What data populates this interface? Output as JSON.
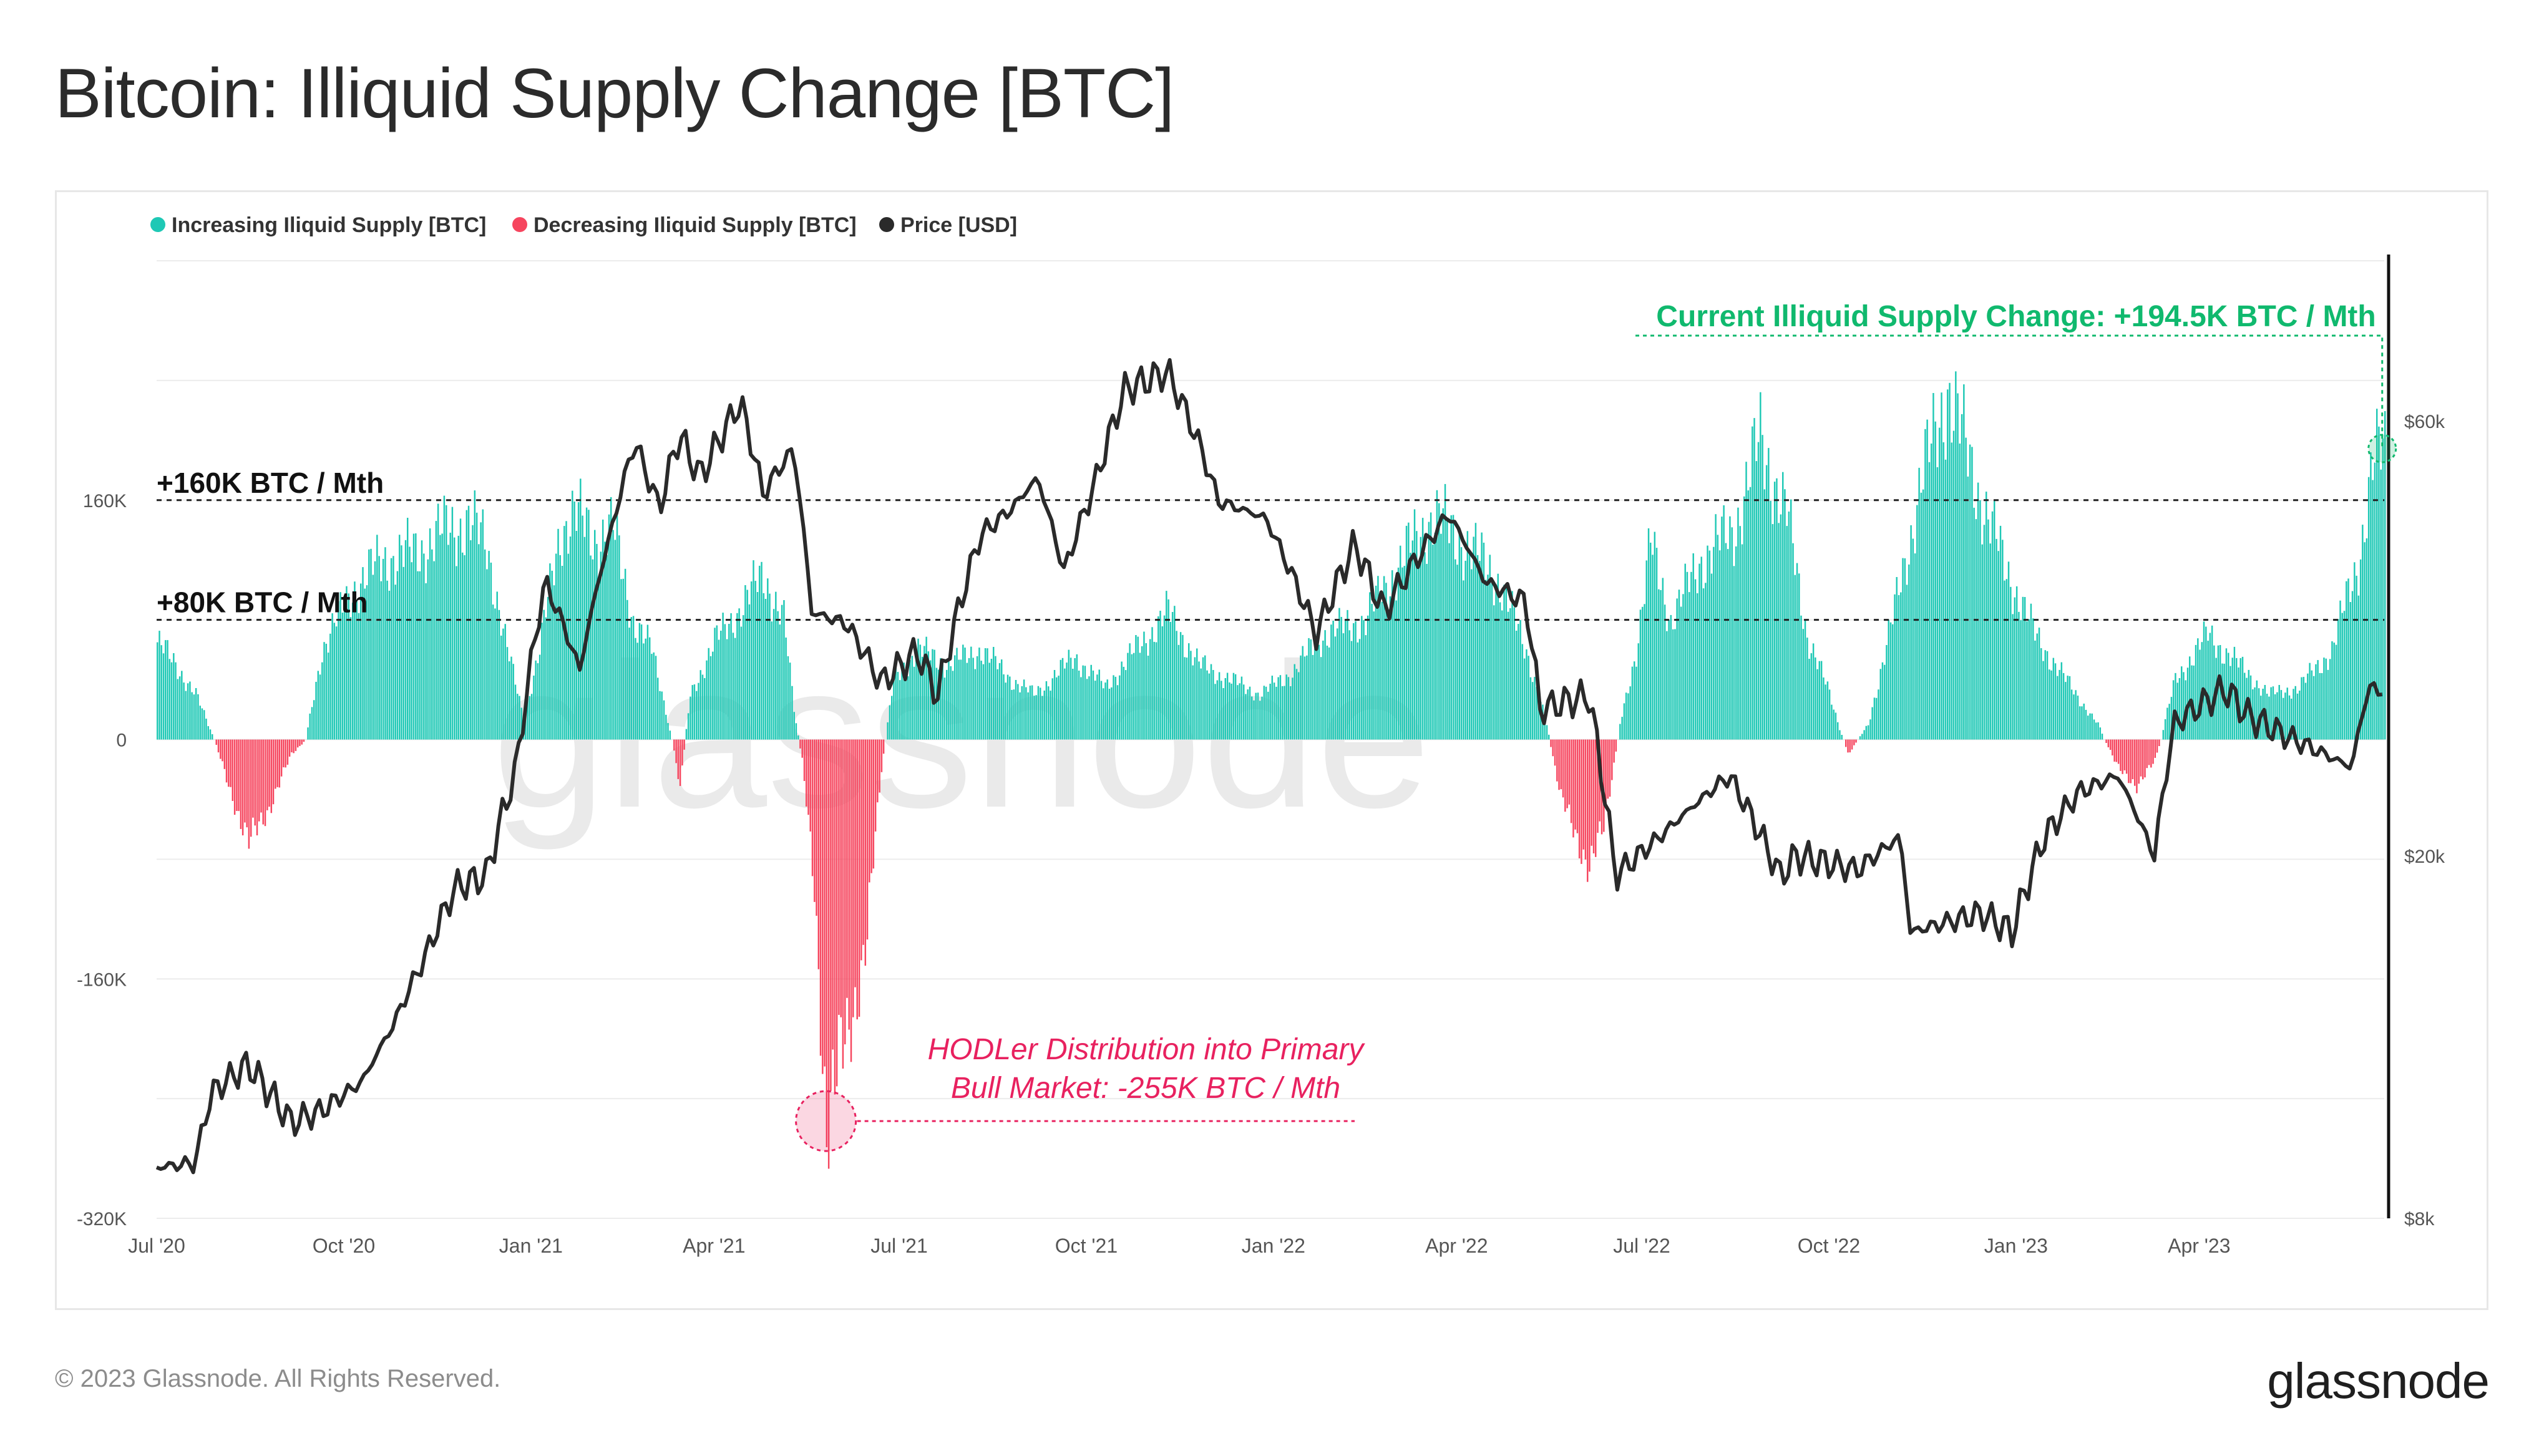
{
  "page": {
    "title": "Bitcoin: Illiquid Supply Change [BTC]",
    "copyright": "© 2023 Glassnode. All Rights Reserved.",
    "brand": "glassnode",
    "watermark": "glassnode"
  },
  "colors": {
    "increasing": "#1ec8b5",
    "decreasing": "#f6455e",
    "price": "#2a2a2a",
    "annotation_green": "#10b96e",
    "annotation_pink": "#e8215f",
    "grid": "#ececec"
  },
  "chart_data": {
    "type": "bar",
    "title": "Bitcoin: Illiquid Supply Change [BTC]",
    "legend": [
      {
        "label": "Increasing Iliquid Supply [BTC]",
        "color": "#1ec8b5"
      },
      {
        "label": "Decreasing Iliquid Supply [BTC]",
        "color": "#f6455e"
      },
      {
        "label": "Price [USD]",
        "color": "#2a2a2a"
      }
    ],
    "x_start": "2020-07-01",
    "x_end": "2023-07-01",
    "x_ticks": [
      "Jul '20",
      "Oct '20",
      "Jan '21",
      "Apr '21",
      "Jul '21",
      "Oct '21",
      "Jan '22",
      "Apr '22",
      "Jul '22",
      "Oct '22",
      "Jan '23",
      "Apr '23"
    ],
    "y_left": {
      "ticks": [
        "160K",
        "0",
        "-160K",
        "-320K"
      ],
      "tick_values": [
        160000,
        0,
        -160000,
        -320000
      ],
      "range": [
        -320000,
        320000
      ]
    },
    "y_right": {
      "ticks": [
        "$60k",
        "$20k",
        "$8k"
      ],
      "tick_values": [
        60000,
        20000,
        8000
      ],
      "scale": "log",
      "range": [
        8000,
        90000
      ]
    },
    "reference_lines": [
      {
        "label": "+160K BTC / Mth",
        "value": 160000
      },
      {
        "label": "+80K BTC / Mth",
        "value": 80000
      }
    ],
    "annotations": [
      {
        "text_lines": [
          "Current Illiquid Supply Change: +194.5K BTC / Mth"
        ],
        "value": 194500,
        "date": "2023-06-30"
      },
      {
        "text_lines": [
          "HODLer Distribution into Primary",
          "Bull Market: -255K BTC / Mth"
        ],
        "value": -255000,
        "date": "2021-05-26"
      }
    ],
    "supply_change_keypoints": [
      [
        "2020-07-01",
        65000
      ],
      [
        "2020-07-10",
        50000
      ],
      [
        "2020-07-20",
        30000
      ],
      [
        "2020-07-29",
        0
      ],
      [
        "2020-08-05",
        -30000
      ],
      [
        "2020-08-15",
        -70000
      ],
      [
        "2020-08-25",
        -45000
      ],
      [
        "2020-09-05",
        -10000
      ],
      [
        "2020-09-12",
        0
      ],
      [
        "2020-09-20",
        60000
      ],
      [
        "2020-10-05",
        100000
      ],
      [
        "2020-10-20",
        120000
      ],
      [
        "2020-11-05",
        125000
      ],
      [
        "2020-11-20",
        140000
      ],
      [
        "2020-12-01",
        145000
      ],
      [
        "2020-12-10",
        130000
      ],
      [
        "2020-12-20",
        60000
      ],
      [
        "2020-12-28",
        15000
      ],
      [
        "2021-01-05",
        60000
      ],
      [
        "2021-01-15",
        140000
      ],
      [
        "2021-01-22",
        150000
      ],
      [
        "2021-02-01",
        135000
      ],
      [
        "2021-02-10",
        140000
      ],
      [
        "2021-02-20",
        80000
      ],
      [
        "2021-03-01",
        60000
      ],
      [
        "2021-03-08",
        20000
      ],
      [
        "2021-03-15",
        -30000
      ],
      [
        "2021-03-20",
        30000
      ],
      [
        "2021-04-01",
        65000
      ],
      [
        "2021-04-15",
        90000
      ],
      [
        "2021-04-25",
        110000
      ],
      [
        "2021-05-05",
        80000
      ],
      [
        "2021-05-10",
        20000
      ],
      [
        "2021-05-14",
        -15000
      ],
      [
        "2021-05-20",
        -100000
      ],
      [
        "2021-05-26",
        -255000
      ],
      [
        "2021-06-05",
        -200000
      ],
      [
        "2021-06-15",
        -130000
      ],
      [
        "2021-06-22",
        -20000
      ],
      [
        "2021-06-28",
        40000
      ],
      [
        "2021-07-10",
        60000
      ],
      [
        "2021-07-25",
        50000
      ],
      [
        "2021-08-10",
        60000
      ],
      [
        "2021-08-25",
        40000
      ],
      [
        "2021-09-05",
        30000
      ],
      [
        "2021-09-25",
        55000
      ],
      [
        "2021-10-10",
        35000
      ],
      [
        "2021-10-25",
        60000
      ],
      [
        "2021-11-10",
        85000
      ],
      [
        "2021-11-25",
        50000
      ],
      [
        "2021-12-10",
        40000
      ],
      [
        "2021-12-25",
        30000
      ],
      [
        "2022-01-10",
        45000
      ],
      [
        "2022-01-25",
        70000
      ],
      [
        "2022-02-15",
        80000
      ],
      [
        "2022-03-05",
        120000
      ],
      [
        "2022-03-20",
        150000
      ],
      [
        "2022-04-05",
        130000
      ],
      [
        "2022-04-20",
        110000
      ],
      [
        "2022-05-05",
        60000
      ],
      [
        "2022-05-15",
        10000
      ],
      [
        "2022-05-22",
        -40000
      ],
      [
        "2022-06-05",
        -85000
      ],
      [
        "2022-06-12",
        -60000
      ],
      [
        "2022-06-20",
        10000
      ],
      [
        "2022-06-28",
        60000
      ],
      [
        "2022-07-05",
        130000
      ],
      [
        "2022-07-15",
        80000
      ],
      [
        "2022-07-30",
        120000
      ],
      [
        "2022-08-15",
        140000
      ],
      [
        "2022-08-28",
        200000
      ],
      [
        "2022-09-10",
        150000
      ],
      [
        "2022-09-20",
        70000
      ],
      [
        "2022-10-01",
        30000
      ],
      [
        "2022-10-10",
        -10000
      ],
      [
        "2022-10-20",
        10000
      ],
      [
        "2022-11-01",
        80000
      ],
      [
        "2022-11-15",
        170000
      ],
      [
        "2022-11-28",
        235000
      ],
      [
        "2022-12-10",
        180000
      ],
      [
        "2022-12-25",
        120000
      ],
      [
        "2023-01-10",
        70000
      ],
      [
        "2023-01-25",
        40000
      ],
      [
        "2023-02-10",
        10000
      ],
      [
        "2023-02-20",
        -20000
      ],
      [
        "2023-03-01",
        -30000
      ],
      [
        "2023-03-10",
        -15000
      ],
      [
        "2023-03-20",
        40000
      ],
      [
        "2023-04-05",
        70000
      ],
      [
        "2023-04-20",
        50000
      ],
      [
        "2023-05-05",
        30000
      ],
      [
        "2023-05-20",
        35000
      ],
      [
        "2023-06-05",
        60000
      ],
      [
        "2023-06-18",
        120000
      ],
      [
        "2023-06-25",
        180000
      ],
      [
        "2023-06-30",
        194500
      ]
    ],
    "price_keypoints": [
      [
        "2020-07-01",
        9100
      ],
      [
        "2020-07-20",
        9200
      ],
      [
        "2020-07-28",
        11000
      ],
      [
        "2020-08-15",
        11800
      ],
      [
        "2020-09-05",
        10200
      ],
      [
        "2020-09-20",
        10500
      ],
      [
        "2020-10-10",
        11300
      ],
      [
        "2020-10-25",
        13000
      ],
      [
        "2020-11-10",
        15500
      ],
      [
        "2020-11-25",
        18500
      ],
      [
        "2020-12-10",
        19000
      ],
      [
        "2020-12-25",
        25000
      ],
      [
        "2021-01-08",
        40000
      ],
      [
        "2021-01-25",
        32000
      ],
      [
        "2021-02-10",
        46000
      ],
      [
        "2021-02-21",
        57000
      ],
      [
        "2021-03-05",
        48000
      ],
      [
        "2021-03-15",
        58000
      ],
      [
        "2021-03-25",
        52000
      ],
      [
        "2021-04-14",
        63000
      ],
      [
        "2021-04-25",
        50000
      ],
      [
        "2021-05-10",
        56000
      ],
      [
        "2021-05-19",
        37000
      ],
      [
        "2021-06-05",
        36000
      ],
      [
        "2021-06-22",
        31000
      ],
      [
        "2021-07-10",
        33500
      ],
      [
        "2021-07-20",
        30000
      ],
      [
        "2021-08-10",
        45000
      ],
      [
        "2021-08-25",
        48000
      ],
      [
        "2021-09-07",
        52000
      ],
      [
        "2021-09-20",
        41000
      ],
      [
        "2021-10-05",
        51000
      ],
      [
        "2021-10-20",
        65000
      ],
      [
        "2021-11-10",
        68000
      ],
      [
        "2021-11-25",
        57000
      ],
      [
        "2021-12-05",
        49000
      ],
      [
        "2021-12-28",
        47000
      ],
      [
        "2022-01-22",
        35000
      ],
      [
        "2022-02-10",
        44000
      ],
      [
        "2022-02-24",
        37000
      ],
      [
        "2022-03-28",
        47500
      ],
      [
        "2022-04-15",
        40000
      ],
      [
        "2022-05-05",
        38000
      ],
      [
        "2022-05-12",
        29000
      ],
      [
        "2022-06-05",
        30000
      ],
      [
        "2022-06-18",
        19000
      ],
      [
        "2022-07-10",
        21000
      ],
      [
        "2022-08-13",
        24500
      ],
      [
        "2022-09-07",
        19000
      ],
      [
        "2022-09-15",
        20000
      ],
      [
        "2022-10-15",
        19300
      ],
      [
        "2022-11-05",
        21000
      ],
      [
        "2022-11-10",
        16500
      ],
      [
        "2022-12-15",
        17300
      ],
      [
        "2022-12-30",
        16500
      ],
      [
        "2023-01-15",
        21000
      ],
      [
        "2023-02-01",
        23500
      ],
      [
        "2023-02-20",
        24500
      ],
      [
        "2023-03-10",
        20000
      ],
      [
        "2023-03-20",
        28000
      ],
      [
        "2023-04-14",
        30500
      ],
      [
        "2023-04-25",
        28500
      ],
      [
        "2023-05-15",
        27000
      ],
      [
        "2023-06-15",
        25000
      ],
      [
        "2023-06-23",
        30500
      ],
      [
        "2023-06-30",
        30500
      ]
    ]
  }
}
